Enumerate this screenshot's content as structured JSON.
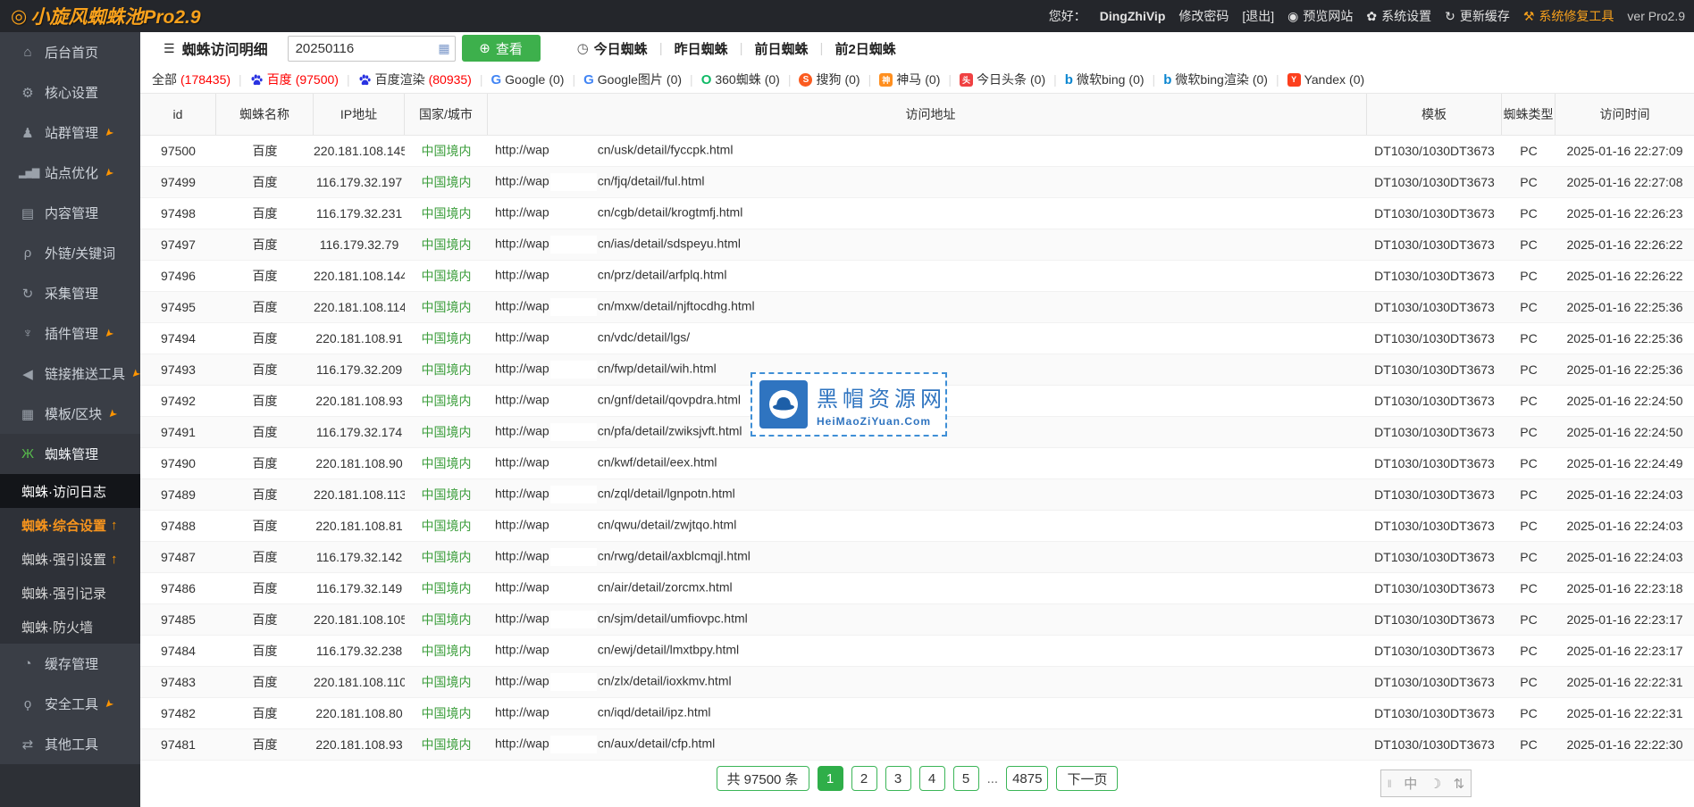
{
  "colors": {
    "accent_orange": "#f8a11c",
    "green": "#3db04c",
    "red": "#ff0000",
    "blue": "#2f74c0",
    "country_green": "#3c9e3c"
  },
  "header": {
    "logo_icon": "◎",
    "title": "小旋风蜘蛛池Pro2.9",
    "greeting": "您好：",
    "username": "DingZhiVip",
    "change_password": "修改密码",
    "logout": "[退出]",
    "preview_site": "预览网站",
    "system_settings": "系统设置",
    "update_cache": "更新缓存",
    "repair_tool": "系统修复工具",
    "version": "ver Pro2.9"
  },
  "sidebar": {
    "items_top": [
      {
        "label": "后台首页",
        "icon": "home",
        "pinned": false
      },
      {
        "label": "核心设置",
        "icon": "gear",
        "pinned": false
      },
      {
        "label": "站群管理",
        "icon": "user",
        "pinned": true
      },
      {
        "label": "站点优化",
        "icon": "chart",
        "pinned": true
      },
      {
        "label": "内容管理",
        "icon": "document",
        "pinned": false
      },
      {
        "label": "外链/关键词",
        "icon": "key",
        "pinned": false
      },
      {
        "label": "采集管理",
        "icon": "refresh",
        "pinned": false
      },
      {
        "label": "插件管理",
        "icon": "plug",
        "pinned": true
      },
      {
        "label": "链接推送工具",
        "icon": "send",
        "pinned": true
      },
      {
        "label": "模板/区块",
        "icon": "blocks",
        "pinned": true
      },
      {
        "label": "蜘蛛管理",
        "icon": "spider",
        "pinned": false,
        "expanded": true
      }
    ],
    "submenu": [
      {
        "label": "蜘蛛·访问日志",
        "active": true,
        "arrow": false,
        "highlight": false
      },
      {
        "label": "蜘蛛·综合设置",
        "active": false,
        "arrow": true,
        "highlight": true
      },
      {
        "label": "蜘蛛·强引设置",
        "active": false,
        "arrow": true,
        "highlight": false
      },
      {
        "label": "蜘蛛·强引记录",
        "active": false,
        "arrow": false,
        "highlight": false
      },
      {
        "label": "蜘蛛·防火墙",
        "active": false,
        "arrow": false,
        "highlight": false
      }
    ],
    "items_bottom": [
      {
        "label": "缓存管理",
        "icon": "clock",
        "pinned": false
      },
      {
        "label": "安全工具",
        "icon": "bulb",
        "pinned": true
      },
      {
        "label": "其他工具",
        "icon": "shuffle",
        "pinned": false
      }
    ]
  },
  "toolbar": {
    "title": "蜘蛛访问明细",
    "date_value": "20250116",
    "view_button": "查看",
    "day_links": [
      "今日蜘蛛",
      "昨日蜘蛛",
      "前日蜘蛛",
      "前2日蜘蛛"
    ]
  },
  "filters": [
    {
      "label": "全部",
      "count": "178435",
      "count_red": true,
      "active": false,
      "icon": null
    },
    {
      "label": "百度",
      "count": "97500",
      "count_red": true,
      "active": true,
      "icon": "baidu"
    },
    {
      "label": "百度渲染",
      "count": "80935",
      "count_red": true,
      "active": false,
      "icon": "baidu"
    },
    {
      "label": "Google",
      "count": "0",
      "count_red": false,
      "active": false,
      "icon": "google"
    },
    {
      "label": "Google图片",
      "count": "0",
      "count_red": false,
      "active": false,
      "icon": "google"
    },
    {
      "label": "360蜘蛛",
      "count": "0",
      "count_red": false,
      "active": false,
      "icon": "s360"
    },
    {
      "label": "搜狗",
      "count": "0",
      "count_red": false,
      "active": false,
      "icon": "sogou"
    },
    {
      "label": "神马",
      "count": "0",
      "count_red": false,
      "active": false,
      "icon": "shenma"
    },
    {
      "label": "今日头条",
      "count": "0",
      "count_red": false,
      "active": false,
      "icon": "toutiao"
    },
    {
      "label": "微软bing",
      "count": "0",
      "count_red": false,
      "active": false,
      "icon": "bing"
    },
    {
      "label": "微软bing渲染",
      "count": "0",
      "count_red": false,
      "active": false,
      "icon": "bing"
    },
    {
      "label": "Yandex",
      "count": "0",
      "count_red": false,
      "active": false,
      "icon": "yandex"
    }
  ],
  "table": {
    "headers": [
      "id",
      "蜘蛛名称",
      "IP地址",
      "国家/城市",
      "访问地址",
      "模板",
      "蜘蛛类型",
      "访问时间"
    ],
    "url_prefix": "http://wap",
    "rows": [
      {
        "id": "97500",
        "spider": "百度",
        "ip": "220.181.108.145",
        "country": "中国境内",
        "url_suffix": "cn/usk/detail/fyccpk.html",
        "template": "DT1030/1030DT3673",
        "type": "PC",
        "time": "2025-01-16 22:27:09"
      },
      {
        "id": "97499",
        "spider": "百度",
        "ip": "116.179.32.197",
        "country": "中国境内",
        "url_suffix": "cn/fjq/detail/ful.html",
        "template": "DT1030/1030DT3673",
        "type": "PC",
        "time": "2025-01-16 22:27:08"
      },
      {
        "id": "97498",
        "spider": "百度",
        "ip": "116.179.32.231",
        "country": "中国境内",
        "url_suffix": "cn/cgb/detail/krogtmfj.html",
        "template": "DT1030/1030DT3673",
        "type": "PC",
        "time": "2025-01-16 22:26:23"
      },
      {
        "id": "97497",
        "spider": "百度",
        "ip": "116.179.32.79",
        "country": "中国境内",
        "url_suffix": "cn/ias/detail/sdspeyu.html",
        "template": "DT1030/1030DT3673",
        "type": "PC",
        "time": "2025-01-16 22:26:22"
      },
      {
        "id": "97496",
        "spider": "百度",
        "ip": "220.181.108.144",
        "country": "中国境内",
        "url_suffix": "cn/prz/detail/arfplq.html",
        "template": "DT1030/1030DT3673",
        "type": "PC",
        "time": "2025-01-16 22:26:22"
      },
      {
        "id": "97495",
        "spider": "百度",
        "ip": "220.181.108.114",
        "country": "中国境内",
        "url_suffix": "cn/mxw/detail/njftocdhg.html",
        "template": "DT1030/1030DT3673",
        "type": "PC",
        "time": "2025-01-16 22:25:36"
      },
      {
        "id": "97494",
        "spider": "百度",
        "ip": "220.181.108.91",
        "country": "中国境内",
        "url_suffix": "cn/vdc/detail/lgs/",
        "template": "DT1030/1030DT3673",
        "type": "PC",
        "time": "2025-01-16 22:25:36"
      },
      {
        "id": "97493",
        "spider": "百度",
        "ip": "116.179.32.209",
        "country": "中国境内",
        "url_suffix": "cn/fwp/detail/wih.html",
        "template": "DT1030/1030DT3673",
        "type": "PC",
        "time": "2025-01-16 22:25:36"
      },
      {
        "id": "97492",
        "spider": "百度",
        "ip": "220.181.108.93",
        "country": "中国境内",
        "url_suffix": "cn/gnf/detail/qovpdra.html",
        "template": "DT1030/1030DT3673",
        "type": "PC",
        "time": "2025-01-16 22:24:50"
      },
      {
        "id": "97491",
        "spider": "百度",
        "ip": "116.179.32.174",
        "country": "中国境内",
        "url_suffix": "cn/pfa/detail/zwiksjvft.html",
        "template": "DT1030/1030DT3673",
        "type": "PC",
        "time": "2025-01-16 22:24:50"
      },
      {
        "id": "97490",
        "spider": "百度",
        "ip": "220.181.108.90",
        "country": "中国境内",
        "url_suffix": "cn/kwf/detail/eex.html",
        "template": "DT1030/1030DT3673",
        "type": "PC",
        "time": "2025-01-16 22:24:49"
      },
      {
        "id": "97489",
        "spider": "百度",
        "ip": "220.181.108.113",
        "country": "中国境内",
        "url_suffix": "cn/zql/detail/lgnpotn.html",
        "template": "DT1030/1030DT3673",
        "type": "PC",
        "time": "2025-01-16 22:24:03"
      },
      {
        "id": "97488",
        "spider": "百度",
        "ip": "220.181.108.81",
        "country": "中国境内",
        "url_suffix": "cn/qwu/detail/zwjtqo.html",
        "template": "DT1030/1030DT3673",
        "type": "PC",
        "time": "2025-01-16 22:24:03"
      },
      {
        "id": "97487",
        "spider": "百度",
        "ip": "116.179.32.142",
        "country": "中国境内",
        "url_suffix": "cn/rwg/detail/axblcmqjl.html",
        "template": "DT1030/1030DT3673",
        "type": "PC",
        "time": "2025-01-16 22:24:03"
      },
      {
        "id": "97486",
        "spider": "百度",
        "ip": "116.179.32.149",
        "country": "中国境内",
        "url_suffix": "cn/air/detail/zorcmx.html",
        "template": "DT1030/1030DT3673",
        "type": "PC",
        "time": "2025-01-16 22:23:18"
      },
      {
        "id": "97485",
        "spider": "百度",
        "ip": "220.181.108.105",
        "country": "中国境内",
        "url_suffix": "cn/sjm/detail/umfiovpc.html",
        "template": "DT1030/1030DT3673",
        "type": "PC",
        "time": "2025-01-16 22:23:17"
      },
      {
        "id": "97484",
        "spider": "百度",
        "ip": "116.179.32.238",
        "country": "中国境内",
        "url_suffix": "cn/ewj/detail/lmxtbpy.html",
        "template": "DT1030/1030DT3673",
        "type": "PC",
        "time": "2025-01-16 22:23:17"
      },
      {
        "id": "97483",
        "spider": "百度",
        "ip": "220.181.108.110",
        "country": "中国境内",
        "url_suffix": "cn/zlx/detail/ioxkmv.html",
        "template": "DT1030/1030DT3673",
        "type": "PC",
        "time": "2025-01-16 22:22:31"
      },
      {
        "id": "97482",
        "spider": "百度",
        "ip": "220.181.108.80",
        "country": "中国境内",
        "url_suffix": "cn/iqd/detail/ipz.html",
        "template": "DT1030/1030DT3673",
        "type": "PC",
        "time": "2025-01-16 22:22:31"
      },
      {
        "id": "97481",
        "spider": "百度",
        "ip": "220.181.108.93",
        "country": "中国境内",
        "url_suffix": "cn/aux/detail/cfp.html",
        "template": "DT1030/1030DT3673",
        "type": "PC",
        "time": "2025-01-16 22:22:30"
      }
    ]
  },
  "watermark": {
    "name": "黑帽资源网",
    "domain": "HeiMaoZiYuan.Com"
  },
  "pagination": {
    "total": "共 97500 条",
    "pages": [
      "1",
      "2",
      "3",
      "4",
      "5"
    ],
    "current": "1",
    "ellipsis": "...",
    "last_page": "4875",
    "next": "下一页"
  },
  "ime": {
    "label": "中"
  }
}
